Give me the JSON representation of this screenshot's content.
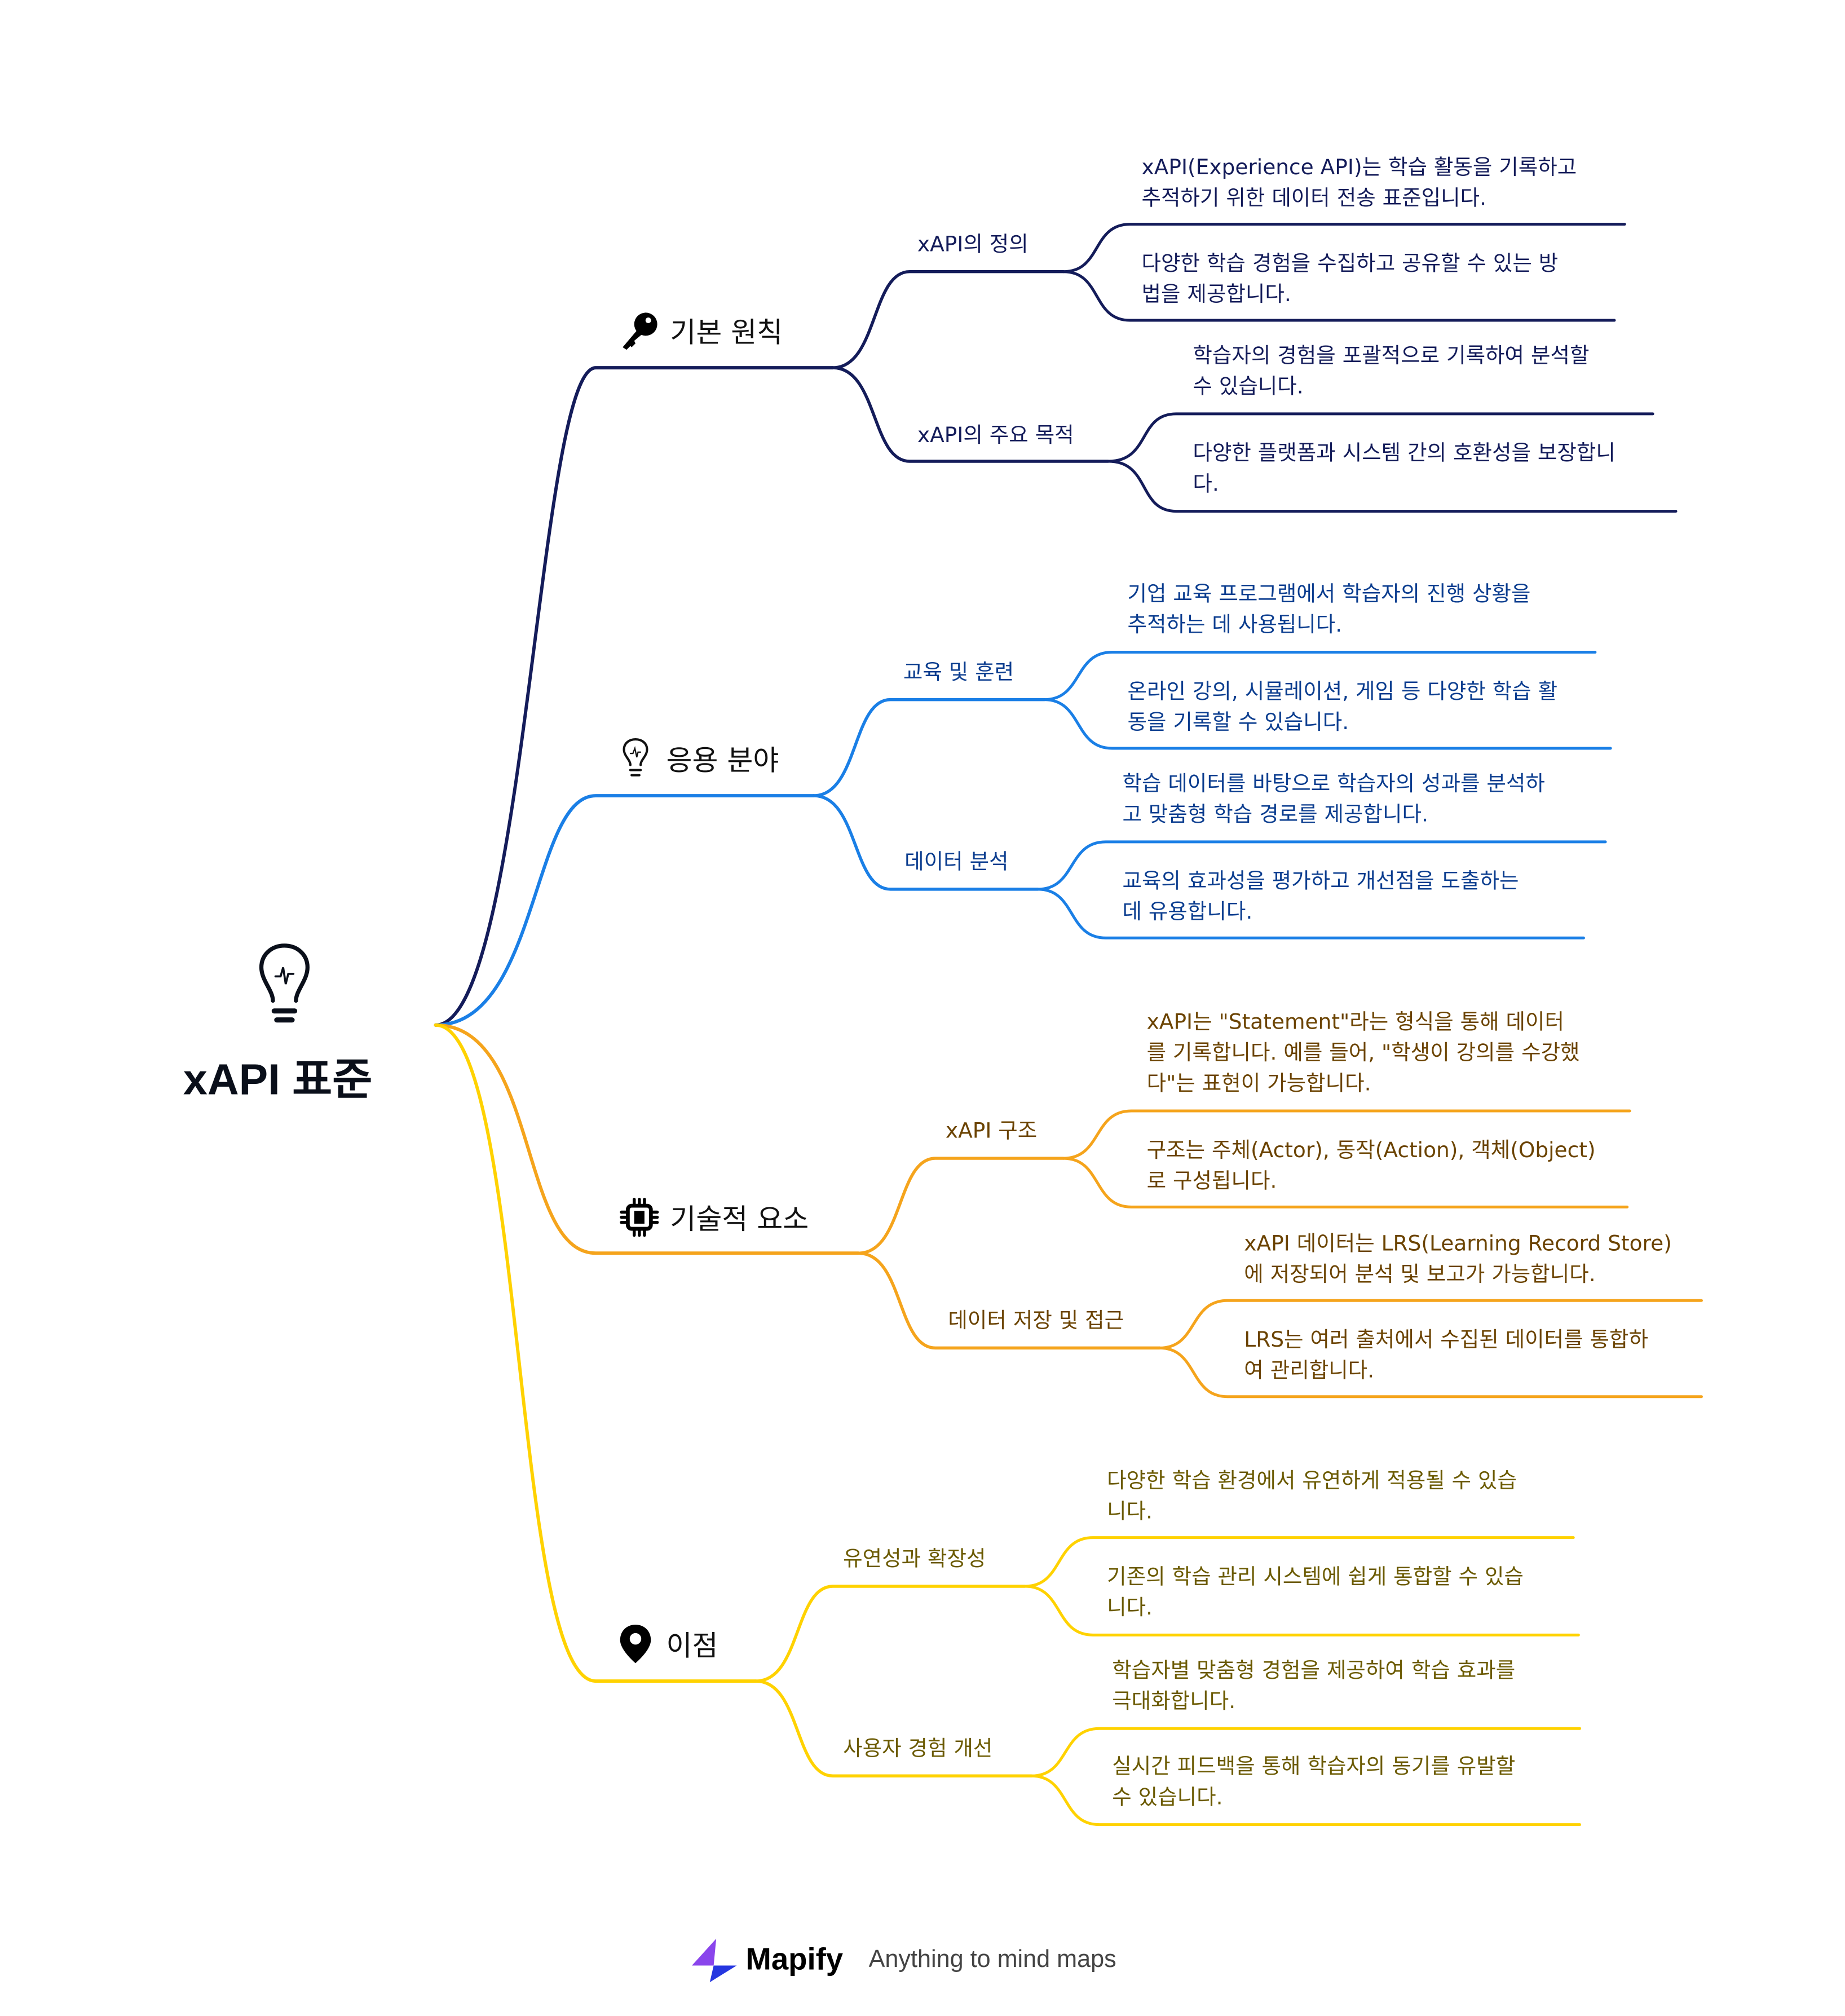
{
  "root": {
    "title": "xAPI 표준",
    "icon": "lightbulb-icon"
  },
  "colors": {
    "branch1": "#141c5a",
    "branch2": "#1a7fe6",
    "branch3": "#f5a41c",
    "branch4": "#ffd200"
  },
  "branches": [
    {
      "label": "기본 원칙",
      "icon": "key-icon",
      "children": [
        {
          "label": "xAPI의 정의",
          "leaves": [
            {
              "lines": [
                "xAPI(Experience API)는 학습 활동을 기록하고",
                "추적하기 위한 데이터 전송 표준입니다."
              ]
            },
            {
              "lines": [
                "다양한 학습 경험을 수집하고 공유할 수 있는 방",
                "법을 제공합니다."
              ]
            }
          ]
        },
        {
          "label": "xAPI의 주요 목적",
          "leaves": [
            {
              "lines": [
                "학습자의 경험을 포괄적으로 기록하여 분석할",
                "수 있습니다."
              ]
            },
            {
              "lines": [
                "다양한 플랫폼과 시스템 간의 호환성을 보장합니",
                "다."
              ]
            }
          ]
        }
      ]
    },
    {
      "label": "응용 분야",
      "icon": "lightbulb-outline-icon",
      "children": [
        {
          "label": "교육 및 훈련",
          "leaves": [
            {
              "lines": [
                "기업 교육 프로그램에서 학습자의 진행 상황을",
                "추적하는 데 사용됩니다."
              ]
            },
            {
              "lines": [
                "온라인 강의, 시뮬레이션, 게임 등 다양한 학습 활",
                "동을 기록할 수 있습니다."
              ]
            }
          ]
        },
        {
          "label": "데이터 분석",
          "leaves": [
            {
              "lines": [
                "학습 데이터를 바탕으로 학습자의 성과를 분석하",
                "고 맞춤형 학습 경로를 제공합니다."
              ]
            },
            {
              "lines": [
                "교육의 효과성을 평가하고 개선점을 도출하는",
                "데 유용합니다."
              ]
            }
          ]
        }
      ]
    },
    {
      "label": "기술적 요소",
      "icon": "chip-icon",
      "children": [
        {
          "label": "xAPI 구조",
          "leaves": [
            {
              "lines": [
                "xAPI는 \"Statement\"라는 형식을 통해 데이터",
                "를 기록합니다. 예를 들어, \"학생이 강의를 수강했",
                "다\"는 표현이 가능합니다."
              ]
            },
            {
              "lines": [
                "구조는 주체(Actor), 동작(Action), 객체(Object)",
                "로 구성됩니다."
              ]
            }
          ]
        },
        {
          "label": "데이터 저장 및 접근",
          "leaves": [
            {
              "lines": [
                "xAPI 데이터는 LRS(Learning Record Store)",
                "에 저장되어 분석 및 보고가 가능합니다."
              ]
            },
            {
              "lines": [
                "LRS는 여러 출처에서 수집된 데이터를 통합하",
                "여 관리합니다."
              ]
            }
          ]
        }
      ]
    },
    {
      "label": "이점",
      "icon": "map-pin-icon",
      "children": [
        {
          "label": "유연성과 확장성",
          "leaves": [
            {
              "lines": [
                "다양한 학습 환경에서 유연하게 적용될 수 있습",
                "니다."
              ]
            },
            {
              "lines": [
                "기존의 학습 관리 시스템에 쉽게 통합할 수 있습",
                "니다."
              ]
            }
          ]
        },
        {
          "label": "사용자 경험 개선",
          "leaves": [
            {
              "lines": [
                "학습자별 맞춤형 경험을 제공하여 학습 효과를",
                "극대화합니다."
              ]
            },
            {
              "lines": [
                "실시간 피드백을 통해 학습자의 동기를 유발할",
                "수 있습니다."
              ]
            }
          ]
        }
      ]
    }
  ],
  "footer": {
    "brand": "Mapify",
    "tagline": "Anything to mind maps",
    "logo_icon": "mapify-bolt-icon"
  }
}
